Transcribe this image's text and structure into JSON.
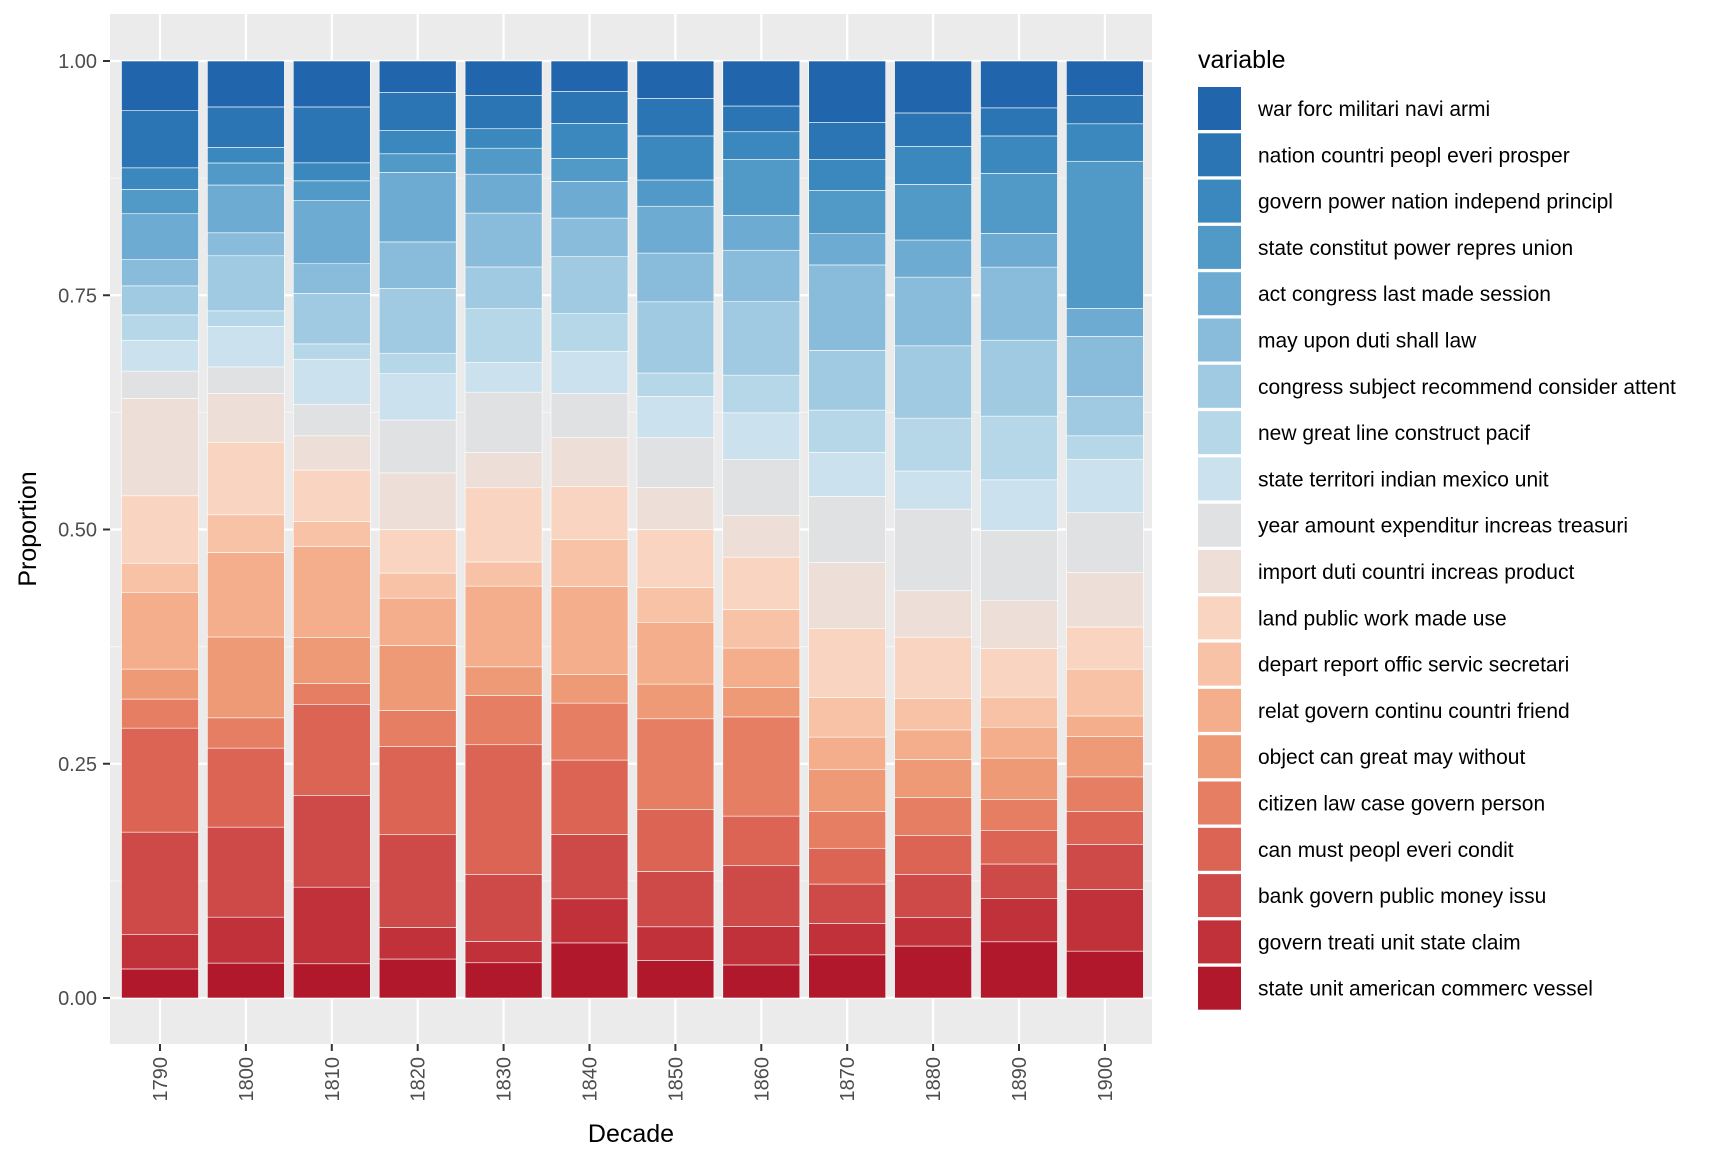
{
  "chart_data": {
    "type": "bar",
    "stacked": "fill",
    "xlabel": "Decade",
    "ylabel": "Proportion",
    "ylim": [
      0,
      1
    ],
    "y_ticks": [
      "0.00",
      "0.25",
      "0.50",
      "0.75",
      "1.00"
    ],
    "categories": [
      "1790",
      "1800",
      "1810",
      "1820",
      "1830",
      "1840",
      "1850",
      "1860",
      "1870",
      "1880",
      "1890",
      "1900"
    ],
    "legend_title": "variable",
    "legend_position": "right",
    "grid": true,
    "series": [
      {
        "name": "state unit american commerc vessel",
        "color": "#B2182B",
        "values": [
          0.031,
          0.038,
          0.038,
          0.042,
          0.038,
          0.06,
          0.04,
          0.036,
          0.047,
          0.056,
          0.06,
          0.05
        ]
      },
      {
        "name": "govern treati unit state claim",
        "color": "#C0313A",
        "values": [
          0.037,
          0.05,
          0.085,
          0.034,
          0.023,
          0.048,
          0.036,
          0.042,
          0.034,
          0.031,
          0.046,
          0.066
        ]
      },
      {
        "name": "bank govern public money issu",
        "color": "#CE4A49",
        "values": [
          0.109,
          0.098,
          0.102,
          0.1,
          0.072,
          0.07,
          0.059,
          0.066,
          0.043,
          0.046,
          0.037,
          0.048
        ]
      },
      {
        "name": "can must peopl everi condit",
        "color": "#DB6454",
        "values": [
          0.111,
          0.086,
          0.101,
          0.095,
          0.14,
          0.081,
          0.066,
          0.054,
          0.039,
          0.042,
          0.036,
          0.035
        ]
      },
      {
        "name": "citizen law case govern person",
        "color": "#E57E63",
        "values": [
          0.031,
          0.033,
          0.023,
          0.039,
          0.053,
          0.062,
          0.097,
          0.108,
          0.04,
          0.041,
          0.033,
          0.037
        ]
      },
      {
        "name": "object can great may without",
        "color": "#EF9A77",
        "values": [
          0.032,
          0.088,
          0.051,
          0.07,
          0.031,
          0.031,
          0.037,
          0.032,
          0.046,
          0.041,
          0.044,
          0.043
        ]
      },
      {
        "name": "relat govern continu countri friend",
        "color": "#F4AE8C",
        "values": [
          0.082,
          0.092,
          0.101,
          0.051,
          0.087,
          0.096,
          0.066,
          0.043,
          0.035,
          0.032,
          0.033,
          0.022
        ]
      },
      {
        "name": "depart report offic servic secretari",
        "color": "#F8C2A6",
        "values": [
          0.031,
          0.041,
          0.028,
          0.027,
          0.026,
          0.051,
          0.037,
          0.042,
          0.043,
          0.034,
          0.032,
          0.05
        ]
      },
      {
        "name": "land public work made use",
        "color": "#F9D5C1",
        "values": [
          0.072,
          0.079,
          0.057,
          0.047,
          0.08,
          0.058,
          0.062,
          0.057,
          0.075,
          0.066,
          0.052,
          0.045
        ]
      },
      {
        "name": "import duti countri increas product",
        "color": "#EDDFD8",
        "values": [
          0.104,
          0.053,
          0.038,
          0.061,
          0.038,
          0.053,
          0.045,
          0.045,
          0.072,
          0.05,
          0.051,
          0.058
        ]
      },
      {
        "name": "year amount expenditur increas treasuri",
        "color": "#DFE1E3",
        "values": [
          0.029,
          0.029,
          0.035,
          0.057,
          0.065,
          0.048,
          0.053,
          0.061,
          0.072,
          0.088,
          0.075,
          0.064
        ]
      },
      {
        "name": "state territori indian mexico unit",
        "color": "#CCE1EE",
        "values": [
          0.033,
          0.044,
          0.05,
          0.05,
          0.032,
          0.046,
          0.044,
          0.051,
          0.048,
          0.041,
          0.054,
          0.057
        ]
      },
      {
        "name": "new great line construct pacif",
        "color": "#B6D7E8",
        "values": [
          0.027,
          0.017,
          0.017,
          0.022,
          0.058,
          0.041,
          0.025,
          0.041,
          0.046,
          0.057,
          0.068,
          0.025
        ]
      },
      {
        "name": "congress subject recommend consider attent",
        "color": "#9FCAE1",
        "values": [
          0.031,
          0.06,
          0.056,
          0.07,
          0.045,
          0.062,
          0.076,
          0.08,
          0.065,
          0.078,
          0.081,
          0.042
        ]
      },
      {
        "name": "may upon duti shall law",
        "color": "#88BCDA",
        "values": [
          0.028,
          0.025,
          0.033,
          0.05,
          0.058,
          0.042,
          0.052,
          0.056,
          0.093,
          0.074,
          0.078,
          0.064
        ]
      },
      {
        "name": "act congress last made session",
        "color": "#6DABD2",
        "values": [
          0.049,
          0.052,
          0.07,
          0.075,
          0.042,
          0.04,
          0.05,
          0.038,
          0.034,
          0.04,
          0.036,
          0.03
        ]
      },
      {
        "name": "state constitut power repres union",
        "color": "#519AC7",
        "values": [
          0.026,
          0.024,
          0.022,
          0.02,
          0.028,
          0.025,
          0.028,
          0.061,
          0.047,
          0.06,
          0.064,
          0.157
        ]
      },
      {
        "name": "govern power nation independ principl",
        "color": "#3B88BE",
        "values": [
          0.023,
          0.017,
          0.02,
          0.025,
          0.021,
          0.038,
          0.047,
          0.03,
          0.034,
          0.041,
          0.04,
          0.04
        ]
      },
      {
        "name": "nation countri peopl everi prosper",
        "color": "#2C75B4",
        "values": [
          0.061,
          0.044,
          0.062,
          0.041,
          0.036,
          0.035,
          0.04,
          0.028,
          0.04,
          0.036,
          0.03,
          0.03
        ]
      },
      {
        "name": "war forc militari navi armi",
        "color": "#2166AC",
        "values": [
          0.053,
          0.05,
          0.051,
          0.034,
          0.037,
          0.033,
          0.04,
          0.049,
          0.067,
          0.056,
          0.05,
          0.037
        ]
      }
    ]
  }
}
